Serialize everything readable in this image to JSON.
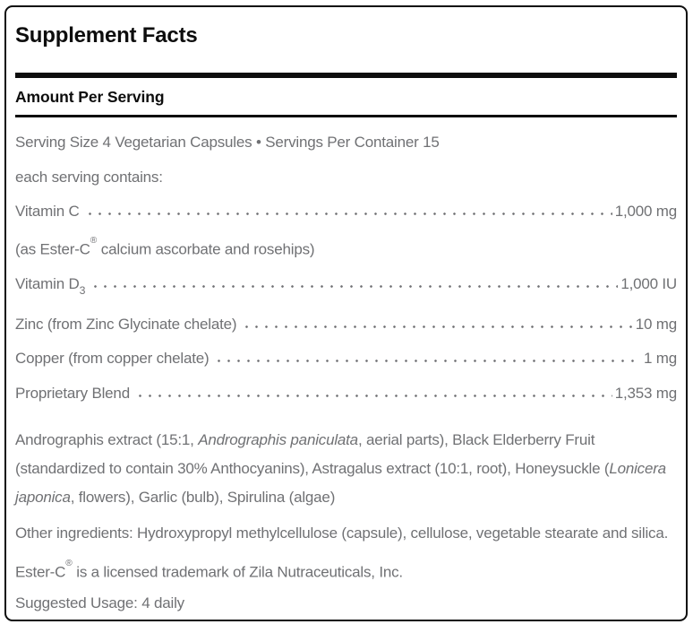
{
  "colors": {
    "ink": "#0d0d0d",
    "text_gray": "#707174",
    "panel_bg": "#ffffff"
  },
  "panel": {
    "title": "Supplement Facts",
    "header": "Amount Per Serving",
    "serving_line": "Serving Size 4 Vegetarian Capsules • Servings Per Container 15",
    "contains_line": "each serving contains:"
  },
  "facts": [
    {
      "label": [
        {
          "text": "Vitamin C"
        }
      ],
      "amount": "1,000 mg"
    },
    {
      "label": [
        {
          "text": "(as Ester-C"
        },
        {
          "text": "®",
          "style": "sup"
        },
        {
          "text": " calcium ascorbate and rosehips)"
        }
      ],
      "amount": ""
    },
    {
      "label": [
        {
          "text": "Vitamin D"
        },
        {
          "text": "3",
          "style": "sub"
        }
      ],
      "amount": "1,000 IU"
    },
    {
      "label": [
        {
          "text": "Zinc (from Zinc Glycinate chelate)"
        }
      ],
      "amount": "10 mg"
    },
    {
      "label": [
        {
          "text": "Copper (from copper chelate)"
        }
      ],
      "amount": "1 mg"
    },
    {
      "label": [
        {
          "text": "Proprietary Blend"
        }
      ],
      "amount": "1,353 mg"
    }
  ],
  "blend_description": [
    {
      "text": "Andrographis extract (15:1, "
    },
    {
      "text": "Andrographis paniculata",
      "style": "italic"
    },
    {
      "text": ", aerial parts), Black Elderberry Fruit (standardized to contain 30% Anthocyanins), Astragalus extract (10:1, root), Honeysuckle ("
    },
    {
      "text": "Lonicera japonica",
      "style": "italic"
    },
    {
      "text": ", flowers), Garlic (bulb), Spirulina (algae)"
    }
  ],
  "other_ingredients": "Other ingredients: Hydroxypropyl methylcellulose (capsule), cellulose, vegetable stearate and silica.",
  "trademark_note": [
    {
      "text": "Ester-C"
    },
    {
      "text": "®",
      "style": "sup"
    },
    {
      "text": " is a licensed trademark of Zila Nutraceuticals, Inc."
    }
  ],
  "suggested_usage": "Suggested Usage: 4 daily"
}
